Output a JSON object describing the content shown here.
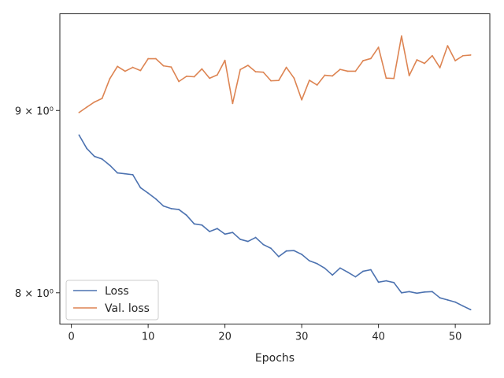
{
  "chart_data": {
    "type": "line",
    "xlabel": "Epochs",
    "ylabel": "",
    "yscale": "log",
    "xlim": [
      -1.5,
      54.5
    ],
    "ylim": [
      7.84,
      9.58
    ],
    "x_ticks": [
      0,
      10,
      20,
      30,
      40,
      50
    ],
    "y_ticks": [
      {
        "value": 8,
        "label": "8 × 10⁰"
      },
      {
        "value": 9,
        "label": "9 × 10⁰"
      }
    ],
    "grid": false,
    "legend": "bottom-left",
    "x": [
      1,
      2,
      3,
      4,
      5,
      6,
      7,
      8,
      9,
      10,
      11,
      12,
      13,
      14,
      15,
      16,
      17,
      18,
      19,
      20,
      21,
      22,
      23,
      24,
      25,
      26,
      27,
      28,
      29,
      30,
      31,
      32,
      33,
      34,
      35,
      36,
      37,
      38,
      39,
      40,
      41,
      42,
      43,
      44,
      45,
      46,
      47,
      48,
      49,
      50,
      51,
      52
    ],
    "series": [
      {
        "name": "Loss",
        "color": "#4c72b0",
        "values": [
          8.858,
          8.782,
          8.737,
          8.722,
          8.687,
          8.644,
          8.639,
          8.634,
          8.562,
          8.532,
          8.5,
          8.461,
          8.447,
          8.442,
          8.411,
          8.364,
          8.358,
          8.323,
          8.339,
          8.309,
          8.318,
          8.281,
          8.27,
          8.291,
          8.253,
          8.233,
          8.189,
          8.219,
          8.221,
          8.201,
          8.167,
          8.152,
          8.128,
          8.092,
          8.129,
          8.107,
          8.083,
          8.112,
          8.12,
          8.055,
          8.062,
          8.053,
          8.0,
          8.006,
          7.998,
          8.004,
          8.006,
          7.974,
          7.963,
          7.952,
          7.932,
          7.913
        ]
      },
      {
        "name": "Val. loss",
        "color": "#dd8452",
        "values": [
          8.988,
          9.019,
          9.049,
          9.07,
          9.186,
          9.26,
          9.231,
          9.254,
          9.235,
          9.306,
          9.306,
          9.263,
          9.256,
          9.17,
          9.201,
          9.198,
          9.245,
          9.189,
          9.209,
          9.296,
          9.041,
          9.241,
          9.266,
          9.228,
          9.225,
          9.174,
          9.176,
          9.254,
          9.19,
          9.062,
          9.177,
          9.149,
          9.207,
          9.203,
          9.242,
          9.231,
          9.231,
          9.294,
          9.307,
          9.375,
          9.19,
          9.188,
          9.443,
          9.205,
          9.299,
          9.278,
          9.324,
          9.252,
          9.384,
          9.294,
          9.324,
          9.328
        ]
      }
    ]
  }
}
